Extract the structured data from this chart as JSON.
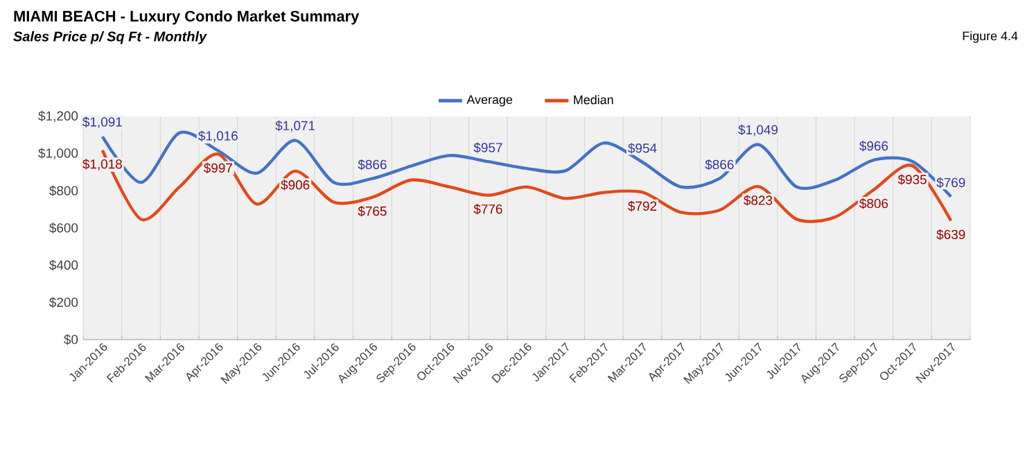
{
  "chart_data": {
    "type": "line",
    "title": "MIAMI BEACH - Luxury Condo Market Summary",
    "subtitle": "Sales Price  p/ Sq Ft - Monthly",
    "annotations": [
      "Figure 4.4"
    ],
    "categories": [
      "Jan-2016",
      "Feb-2016",
      "Mar-2016",
      "Apr-2016",
      "May-2016",
      "Jun-2016",
      "Jul-2016",
      "Aug-2016",
      "Sep-2016",
      "Oct-2016",
      "Nov-2016",
      "Dec-2016",
      "Jan-2017",
      "Feb-2017",
      "Mar-2017",
      "Apr-2017",
      "May-2017",
      "Jun-2017",
      "Jul-2017",
      "Aug-2017",
      "Sep-2017",
      "Oct-2017",
      "Nov-2017"
    ],
    "series": [
      {
        "name": "Average",
        "color": "#4472c4",
        "values": [
          1091,
          845,
          1112,
          1016,
          895,
          1071,
          845,
          866,
          933,
          990,
          957,
          920,
          908,
          1057,
          954,
          821,
          866,
          1049,
          821,
          858,
          966,
          958,
          769
        ],
        "value_labels": [
          "$1,091",
          null,
          null,
          "$1,016",
          null,
          "$1,071",
          null,
          "$866",
          null,
          null,
          "$957",
          null,
          null,
          null,
          "$954",
          null,
          "$866",
          "$1,049",
          null,
          null,
          "$966",
          null,
          "$769"
        ]
      },
      {
        "name": "Median",
        "color": "#e2491b",
        "values": [
          1018,
          647,
          821,
          997,
          729,
          906,
          739,
          765,
          858,
          821,
          776,
          821,
          759,
          791,
          792,
          684,
          696,
          823,
          647,
          659,
          806,
          935,
          639
        ],
        "value_labels": [
          "$1,018",
          null,
          null,
          "$997",
          null,
          "$906",
          null,
          "$765",
          null,
          null,
          "$776",
          null,
          null,
          null,
          "$792",
          null,
          null,
          "$823",
          null,
          null,
          "$806",
          "$935",
          "$639"
        ]
      }
    ],
    "ylim": [
      0,
      1200
    ],
    "yticks": [
      {
        "value": 0,
        "label": "$0"
      },
      {
        "value": 200,
        "label": "$200"
      },
      {
        "value": 400,
        "label": "$400"
      },
      {
        "value": 600,
        "label": "$600"
      },
      {
        "value": 800,
        "label": "$800"
      },
      {
        "value": 1000,
        "label": "$1,000"
      },
      {
        "value": 1200,
        "label": "$1,200"
      }
    ],
    "grid": "x",
    "legend": "top",
    "marker": "none",
    "line_style": "solid"
  }
}
